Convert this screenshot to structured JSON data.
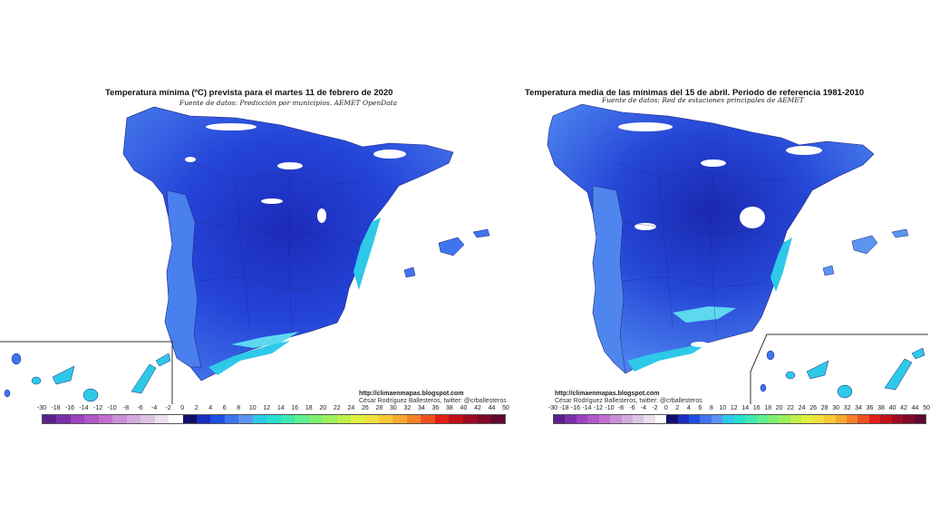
{
  "left_map": {
    "title": "Temperatura mínima (ºC) prevista para el martes 11 de febrero de 2020",
    "subtitle": "Fuente de datos: Predicción por municipios. AEMET OpenData",
    "credit_url": "http://climaenmapas.blogspot.com",
    "credit_author": "César Rodríguez Ballesteros, twitter: @crballesteros"
  },
  "right_map": {
    "title": "Temperatura media de las mínimas del 15 de abril. Periodo de referencia 1981-2010",
    "subtitle": "Fuente de datos: Red de estaciones principales de AEMET",
    "credit_url": "http://climaenmapas.blogspot.com",
    "credit_author": "César Rodríguez Ballesteros, twitter: @crballesteros"
  },
  "legend": {
    "left_ticks": [
      "-30",
      "-18",
      "-16",
      "-14",
      "-12",
      "-10",
      "-8",
      "-6",
      "-4",
      "-2",
      "0",
      "2",
      "4",
      "6",
      "8",
      "10",
      "12",
      "14",
      "16",
      "18",
      "20",
      "22",
      "24",
      "26",
      "28",
      "30",
      "32",
      "34",
      "36",
      "38",
      "40",
      "42",
      "44",
      "50"
    ],
    "right_ticks": [
      "-30",
      "-18",
      "-16",
      "-14",
      "-12",
      "-10",
      "-8",
      "-6",
      "-4",
      "-2",
      "0",
      "2",
      "4",
      "6",
      "8",
      "10",
      "12",
      "14",
      "16",
      "18",
      "20",
      "22",
      "24",
      "26",
      "28",
      "30",
      "32",
      "34",
      "36",
      "38",
      "40",
      "42",
      "44",
      "50"
    ],
    "colors": [
      "#5b1f8a",
      "#7a2fa8",
      "#9a44be",
      "#b058c8",
      "#c06fd0",
      "#c98fd6",
      "#d3acdc",
      "#dcc6e4",
      "#eae0f0",
      "#ffffff",
      "#10106a",
      "#1a2cc0",
      "#1f4fe0",
      "#3f74ee",
      "#5c94f2",
      "#2ec9e8",
      "#28e0d0",
      "#3fe8b0",
      "#5cf090",
      "#7ef070",
      "#9cf05a",
      "#c0f04a",
      "#e0f040",
      "#f0e040",
      "#f8c838",
      "#f8a830",
      "#f88028",
      "#f05020",
      "#e02018",
      "#c01018",
      "#a00a20",
      "#800828",
      "#600830"
    ]
  }
}
